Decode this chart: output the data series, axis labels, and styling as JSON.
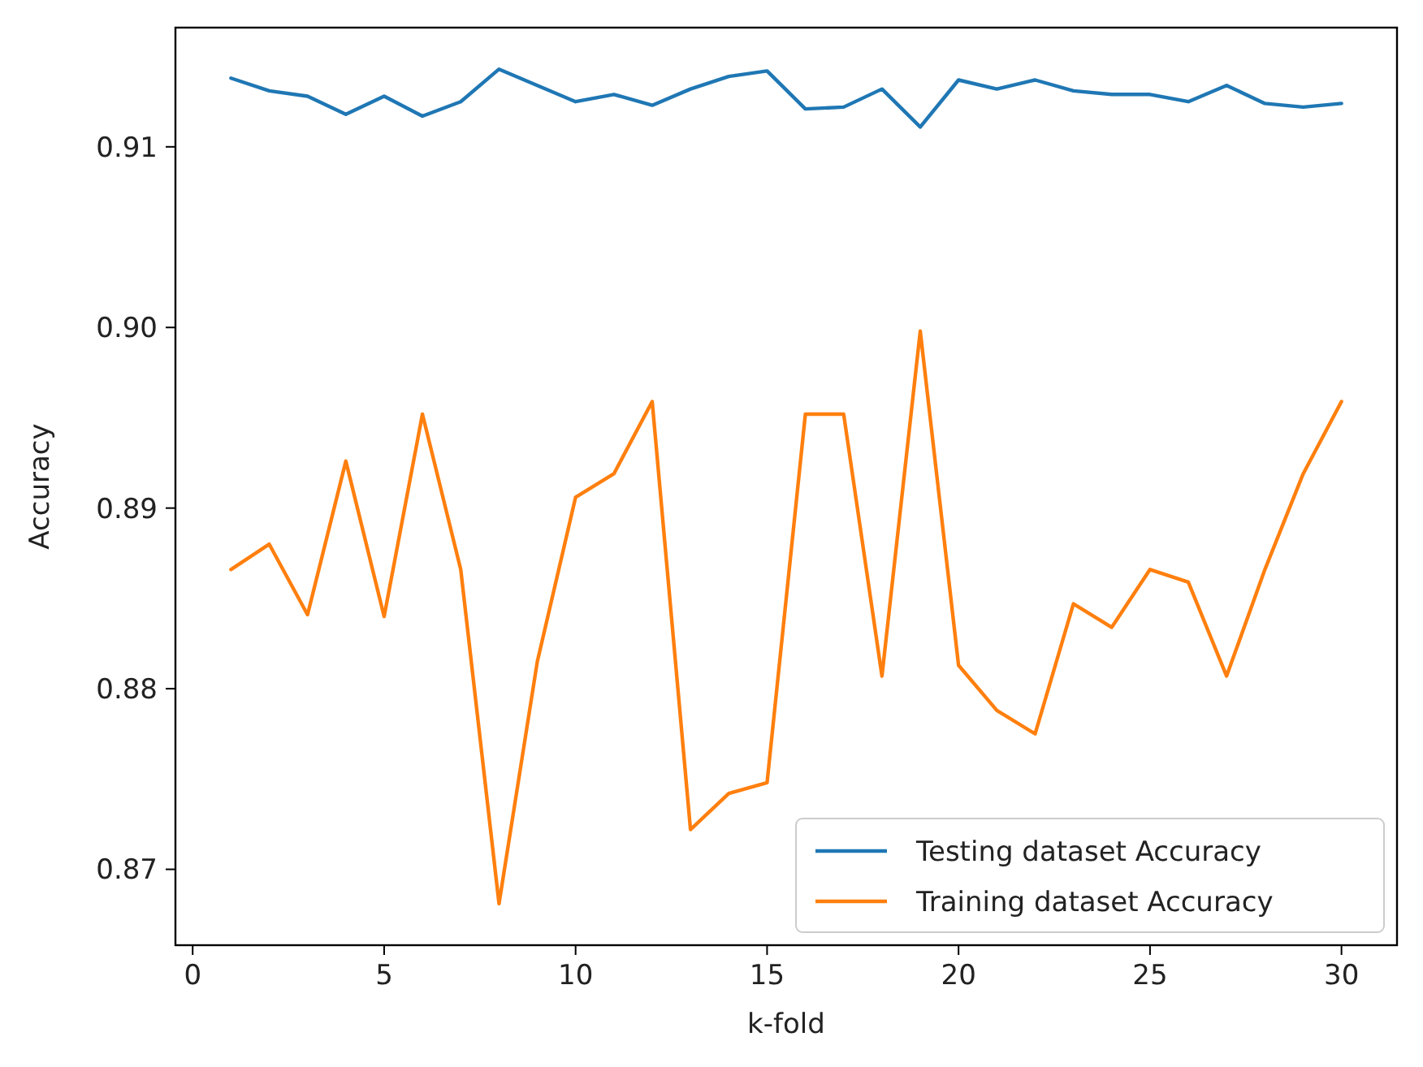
{
  "chart_data": {
    "type": "line",
    "xlabel": "k-fold",
    "ylabel": "Accuracy",
    "x": [
      1,
      2,
      3,
      4,
      5,
      6,
      7,
      8,
      9,
      10,
      11,
      12,
      13,
      14,
      15,
      16,
      17,
      18,
      19,
      20,
      21,
      22,
      23,
      24,
      25,
      26,
      27,
      28,
      29,
      30
    ],
    "series": [
      {
        "name": "Testing dataset Accuracy",
        "color": "#1f77b4",
        "values": [
          0.9138,
          0.9131,
          0.9128,
          0.9118,
          0.9128,
          0.9117,
          0.9125,
          0.9143,
          0.9134,
          0.9125,
          0.9129,
          0.9123,
          0.9132,
          0.9139,
          0.9142,
          0.9121,
          0.9122,
          0.9132,
          0.9111,
          0.9137,
          0.9132,
          0.9137,
          0.9131,
          0.9129,
          0.9129,
          0.9125,
          0.9134,
          0.9124,
          0.9122,
          0.9124
        ]
      },
      {
        "name": "Training dataset Accuracy",
        "color": "#ff7f0e",
        "values": [
          0.8866,
          0.888,
          0.8841,
          0.8926,
          0.884,
          0.8952,
          0.8866,
          0.8681,
          0.8815,
          0.8906,
          0.8919,
          0.8959,
          0.8722,
          0.8742,
          0.8748,
          0.8952,
          0.8952,
          0.8807,
          0.8998,
          0.8813,
          0.8788,
          0.8775,
          0.8847,
          0.8834,
          0.8866,
          0.8859,
          0.8807,
          0.8866,
          0.8919,
          0.8959
        ]
      }
    ],
    "xlim": [
      -0.45,
      31.45
    ],
    "ylim": [
      0.8658,
      0.9166
    ],
    "xticks": [
      0,
      5,
      10,
      15,
      20,
      25,
      30
    ],
    "yticks": [
      {
        "value": 0.87,
        "label": "0.87"
      },
      {
        "value": 0.88,
        "label": "0.88"
      },
      {
        "value": 0.89,
        "label": "0.89"
      },
      {
        "value": 0.9,
        "label": "0.90"
      },
      {
        "value": 0.91,
        "label": "0.91"
      }
    ],
    "grid": false,
    "legend": "bottom right",
    "marker": "none",
    "line_style": "solid"
  }
}
